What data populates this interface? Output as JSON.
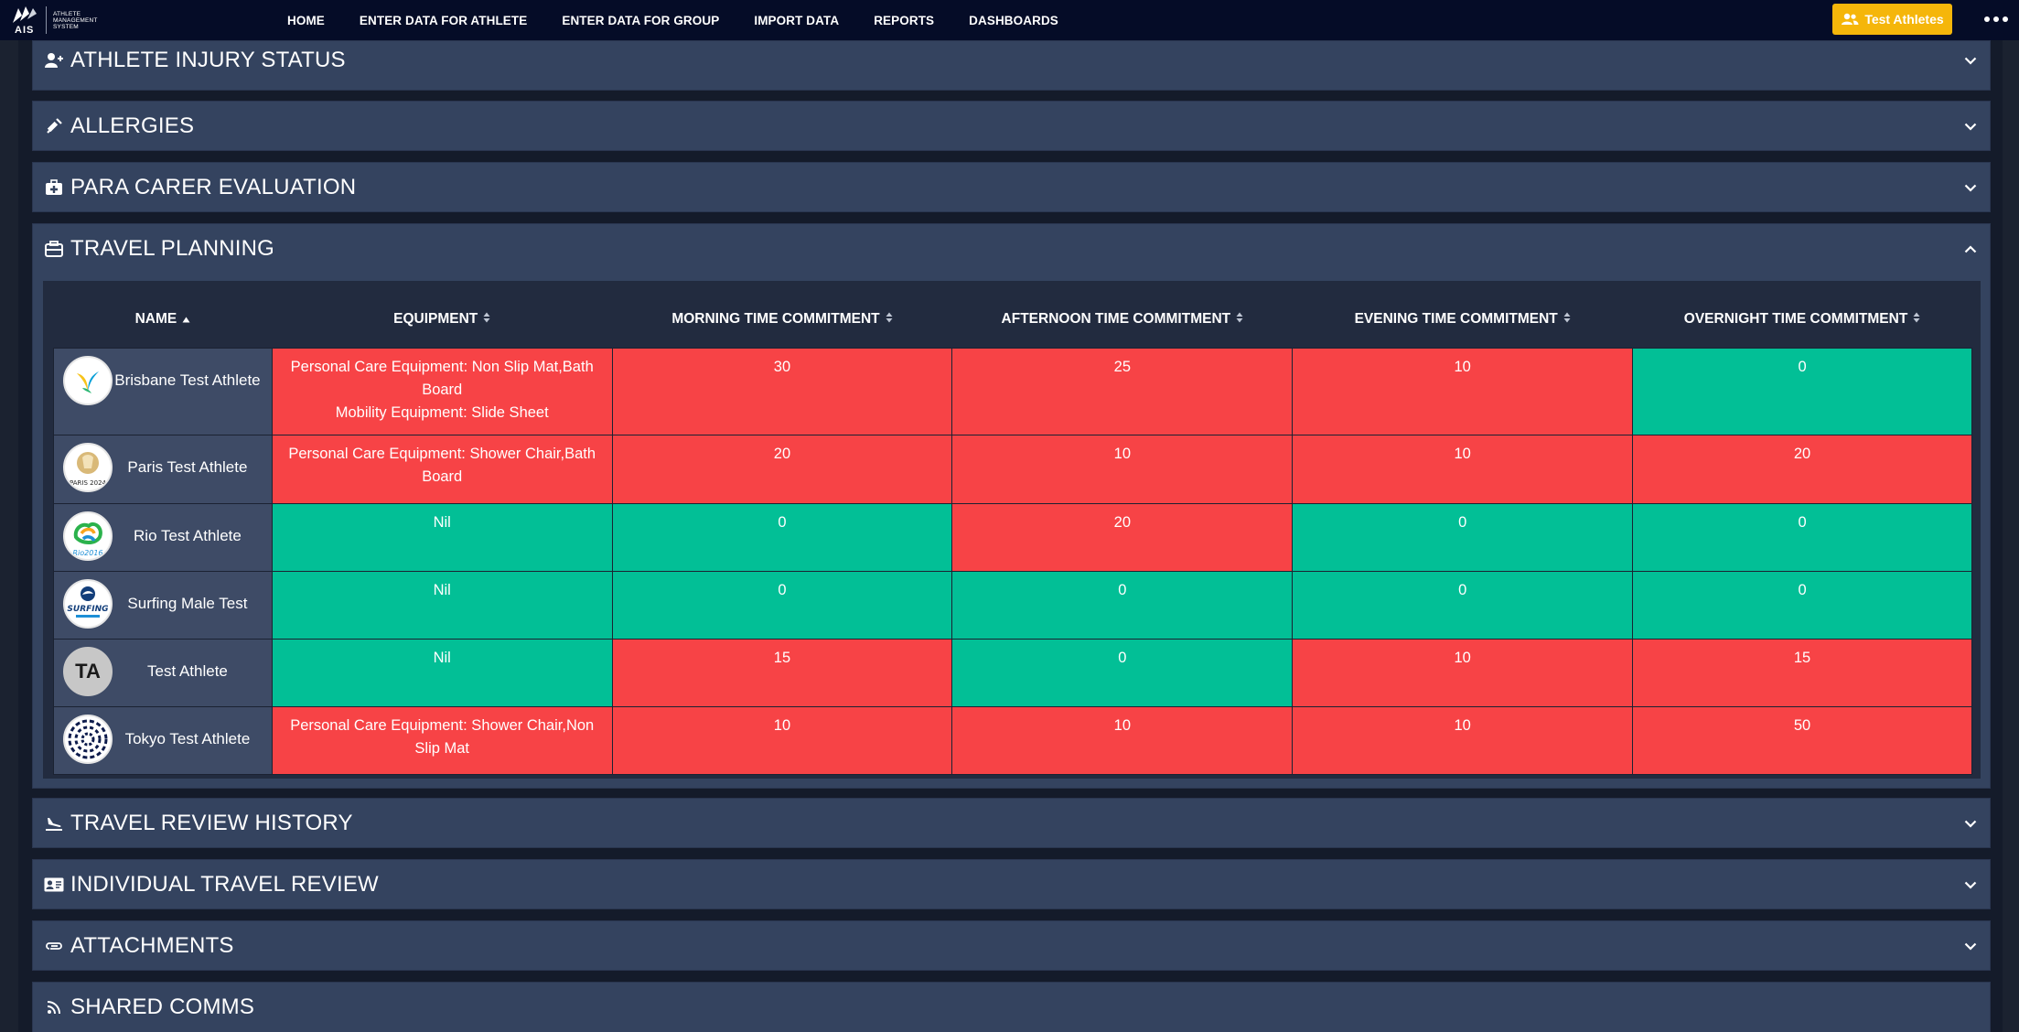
{
  "nav": {
    "logo_text": "ATHLETE MANAGEMENT SYSTEM",
    "logo_letters": "AIS",
    "links": [
      "HOME",
      "ENTER DATA FOR ATHLETE",
      "ENTER DATA FOR GROUP",
      "IMPORT DATA",
      "REPORTS",
      "DASHBOARDS"
    ],
    "group_button_label": "Test Athletes",
    "group_button_color": "#f5b60a"
  },
  "panels": {
    "injury_status": "ATHLETE INJURY STATUS",
    "allergies": "ALLERGIES",
    "para_carer": "PARA CARER EVALUATION",
    "travel_planning": "TRAVEL PLANNING",
    "travel_review_history": "TRAVEL REVIEW HISTORY",
    "individual_travel_review": "INDIVIDUAL TRAVEL REVIEW",
    "attachments": "ATTACHMENTS",
    "shared_comms": "SHARED COMMS"
  },
  "travel_table": {
    "headers": {
      "name": "NAME",
      "equipment": "EQUIPMENT",
      "morning": "MORNING TIME COMMITMENT",
      "afternoon": "AFTERNOON TIME COMMITMENT",
      "evening": "EVENING TIME COMMITMENT",
      "overnight": "OVERNIGHT TIME COMMITMENT"
    },
    "sorted_by": "name-ascending",
    "status_colors": {
      "red": "#f74346",
      "green": "#02bf96"
    },
    "rows": [
      {
        "name": "Brisbane Test Athlete",
        "avatar": "brisbane-logo",
        "equipment_lines": [
          "Personal Care Equipment: Non Slip Mat,Bath Board",
          "Mobility Equipment: Slide Sheet"
        ],
        "equipment_status": "red",
        "morning": "30",
        "morning_status": "red",
        "afternoon": "25",
        "afternoon_status": "red",
        "evening": "10",
        "evening_status": "red",
        "overnight": "0",
        "overnight_status": "green"
      },
      {
        "name": "Paris Test Athlete",
        "avatar": "paris-2024-logo",
        "avatar_text": "PARIS 2024",
        "equipment_lines": [
          "Personal Care Equipment: Shower Chair,Bath Board"
        ],
        "equipment_status": "red",
        "morning": "20",
        "morning_status": "red",
        "afternoon": "10",
        "afternoon_status": "red",
        "evening": "10",
        "evening_status": "red",
        "overnight": "20",
        "overnight_status": "red"
      },
      {
        "name": "Rio Test Athlete",
        "avatar": "rio-2016-logo",
        "avatar_text": "Rio2016",
        "equipment_lines": [
          "Nil"
        ],
        "equipment_status": "green",
        "morning": "0",
        "morning_status": "green",
        "afternoon": "20",
        "afternoon_status": "red",
        "evening": "0",
        "evening_status": "green",
        "overnight": "0",
        "overnight_status": "green"
      },
      {
        "name": "Surfing Male Test",
        "avatar": "surfing-australia-logo",
        "avatar_text": "SURFING",
        "equipment_lines": [
          "Nil"
        ],
        "equipment_status": "green",
        "morning": "0",
        "morning_status": "green",
        "afternoon": "0",
        "afternoon_status": "green",
        "evening": "0",
        "evening_status": "green",
        "overnight": "0",
        "overnight_status": "green"
      },
      {
        "name": "Test Athlete",
        "avatar": "initials",
        "avatar_initials": "TA",
        "equipment_lines": [
          "Nil"
        ],
        "equipment_status": "green",
        "morning": "15",
        "morning_status": "red",
        "afternoon": "0",
        "afternoon_status": "green",
        "evening": "10",
        "evening_status": "red",
        "overnight": "15",
        "overnight_status": "red"
      },
      {
        "name": "Tokyo Test Athlete",
        "avatar": "tokyo-2020-logo",
        "equipment_lines": [
          "Personal Care Equipment: Shower Chair,Non Slip Mat"
        ],
        "equipment_status": "red",
        "morning": "10",
        "morning_status": "red",
        "afternoon": "10",
        "afternoon_status": "red",
        "evening": "10",
        "evening_status": "red",
        "overnight": "50",
        "overnight_status": "red"
      }
    ]
  }
}
